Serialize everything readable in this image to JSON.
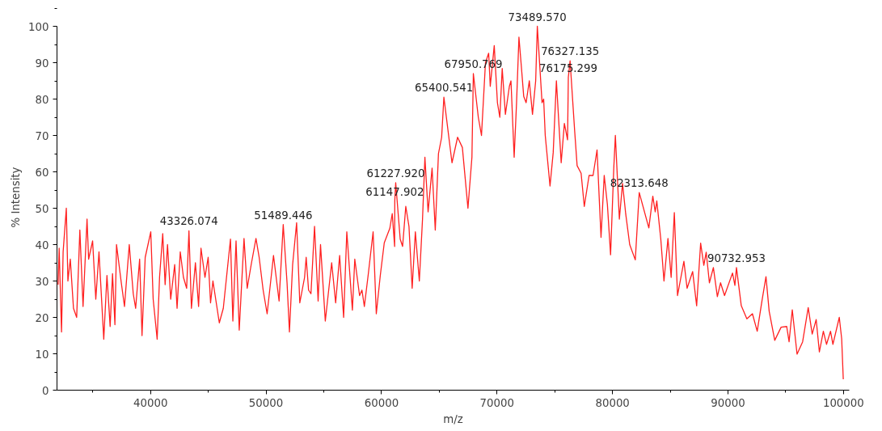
{
  "chart_data": {
    "type": "line",
    "xlabel": "m/z",
    "ylabel": "% Intensity",
    "x": [
      32000,
      32086,
      32293,
      32431,
      32707,
      32845,
      33052,
      33328,
      33604,
      33880,
      34156,
      34501,
      34639,
      34984,
      35260,
      35536,
      35950,
      36226,
      36502,
      36709,
      36916,
      37054,
      37468,
      37744,
      38158,
      38503,
      38710,
      39055,
      39262,
      39538,
      40021,
      40228,
      40573,
      40780,
      41056,
      41263,
      41470,
      41746,
      42091,
      42298,
      42574,
      42850,
      43126,
      43326,
      43540,
      43885,
      44161,
      44368,
      44713,
      44989,
      45196,
      45403,
      45955,
      46300,
      46921,
      47128,
      47404,
      47680,
      48094,
      48370,
      48715,
      49129,
      49405,
      49750,
      50095,
      50647,
      51130,
      51489,
      51820,
      52027,
      52303,
      52648,
      52924,
      53338,
      53476,
      53683,
      53890,
      54200,
      54511,
      54718,
      55132,
      55684,
      56029,
      56374,
      56719,
      56995,
      57478,
      57685,
      58099,
      58306,
      58513,
      58858,
      59272,
      59548,
      59893,
      60238,
      60721,
      60928,
      61135,
      61148,
      61228,
      61618,
      61825,
      62101,
      62377,
      62653,
      62929,
      63274,
      63550,
      63757,
      64033,
      64378,
      64654,
      64930,
      65206,
      65400,
      66103,
      66586,
      67000,
      67483,
      67828,
      67951,
      68380,
      68656,
      69001,
      69277,
      69415,
      69760,
      70036,
      70243,
      70450,
      70726,
      71071,
      71209,
      71485,
      71692,
      71899,
      72106,
      72313,
      72520,
      72796,
      73072,
      73348,
      73490,
      73900,
      74038,
      74176,
      74590,
      74866,
      75142,
      75349,
      75556,
      75832,
      76108,
      76175,
      76327,
      76729,
      76936,
      77281,
      77557,
      77971,
      78316,
      78661,
      79006,
      79282,
      79558,
      79834,
      80110,
      80248,
      80593,
      80869,
      81145,
      81490,
      81973,
      82314,
      83146,
      83491,
      83698,
      83836,
      84181,
      84457,
      84802,
      85078,
      85354,
      85630,
      86182,
      86458,
      86941,
      87286,
      87631,
      87907,
      88114,
      88390,
      88735,
      89080,
      89356,
      89701,
      90391,
      90598,
      90733,
      91150,
      91633,
      92116,
      92530,
      92944,
      93289,
      93565,
      94048,
      94600,
      95083,
      95290,
      95566,
      95980,
      96463,
      96946,
      97291,
      97636,
      97912,
      98257,
      98533,
      98878,
      99085,
      99637,
      99844,
      99982
    ],
    "series": [
      {
        "color": "#ff2020",
        "values": [
          29,
          39,
          16,
          38,
          50,
          30,
          36,
          22.5,
          20,
          44,
          23,
          47,
          36,
          41,
          25,
          38,
          14,
          31.5,
          17.5,
          32,
          18,
          40,
          29.5,
          23,
          40,
          26.5,
          22.5,
          36,
          15,
          36.5,
          43.5,
          25,
          14,
          31,
          43,
          29,
          40,
          25,
          34.5,
          22.5,
          38,
          31,
          28,
          43.8,
          22.5,
          35,
          23,
          39,
          31,
          36.5,
          24,
          30,
          18.5,
          22.5,
          41.5,
          19,
          41,
          16.5,
          41.7,
          28,
          34.5,
          41.7,
          36.5,
          27.5,
          21,
          37,
          24.5,
          45.5,
          29.5,
          16,
          34.5,
          46,
          24,
          31,
          36.5,
          27.5,
          26.5,
          45,
          24.5,
          40,
          19,
          35,
          24,
          37,
          20,
          43.5,
          22,
          36,
          26,
          27.5,
          23,
          32,
          43.5,
          21,
          31.5,
          40.5,
          44.5,
          48.5,
          39.5,
          52,
          57,
          41.5,
          39.5,
          50.5,
          45,
          28,
          43.5,
          30,
          47,
          64,
          49,
          61,
          44,
          65,
          69.5,
          80.5,
          62.5,
          69.5,
          66.7,
          50,
          64,
          87,
          75,
          70,
          90,
          92.6,
          83.5,
          94.7,
          79,
          75,
          88.4,
          75.8,
          83.5,
          85,
          64,
          79,
          97,
          89,
          80.7,
          79,
          85,
          75.8,
          85,
          100,
          79,
          80,
          70,
          56.1,
          65.3,
          85,
          73.7,
          62.5,
          73.3,
          68.8,
          86,
          90.5,
          71,
          61.7,
          59.6,
          50.5,
          59,
          59,
          66,
          42,
          59,
          51,
          37.2,
          61,
          70,
          47,
          56.8,
          48.4,
          40,
          35.8,
          54.3,
          44.6,
          53.3,
          49,
          52,
          41.5,
          30,
          41.7,
          31,
          48.8,
          26,
          35.4,
          28,
          32.6,
          23.2,
          40.4,
          34.3,
          37.9,
          29.5,
          33.7,
          25.7,
          29.5,
          26,
          32.2,
          28.8,
          33.7,
          23.2,
          19.6,
          21,
          16.2,
          24.6,
          31.2,
          21.7,
          13.7,
          17.3,
          17.5,
          13.3,
          22.1,
          9.9,
          13.3,
          22.7,
          15.4,
          19.4,
          10.5,
          16.2,
          12.6,
          16.2,
          12.6,
          20,
          14.1,
          3
        ]
      }
    ],
    "xlim": [
      31900,
      100500
    ],
    "ylim": [
      0,
      100
    ],
    "xticks": [
      40000,
      50000,
      60000,
      70000,
      80000,
      90000,
      100000
    ],
    "yticks": [
      0,
      10,
      20,
      30,
      40,
      50,
      60,
      70,
      80,
      90,
      100
    ],
    "grid": false,
    "marker": "none",
    "line_style": "solid",
    "annotations": [
      {
        "text": "43326.074",
        "x": 43326,
        "y": 43.8
      },
      {
        "text": "51489.446",
        "x": 51489,
        "y": 45.5
      },
      {
        "text": "61147.902",
        "x": 61148,
        "y": 52
      },
      {
        "text": "61227.920",
        "x": 61228,
        "y": 57
      },
      {
        "text": "65400.541",
        "x": 65400,
        "y": 80.5
      },
      {
        "text": "67950.769",
        "x": 67951,
        "y": 87
      },
      {
        "text": "73489.570",
        "x": 73490,
        "y": 100
      },
      {
        "text": "76175.299",
        "x": 76175,
        "y": 86
      },
      {
        "text": "76327.135",
        "x": 76327,
        "y": 90.5
      },
      {
        "text": "82313.648",
        "x": 82314,
        "y": 54.3
      },
      {
        "text": "90732.953",
        "x": 90733,
        "y": 33.7
      }
    ]
  }
}
